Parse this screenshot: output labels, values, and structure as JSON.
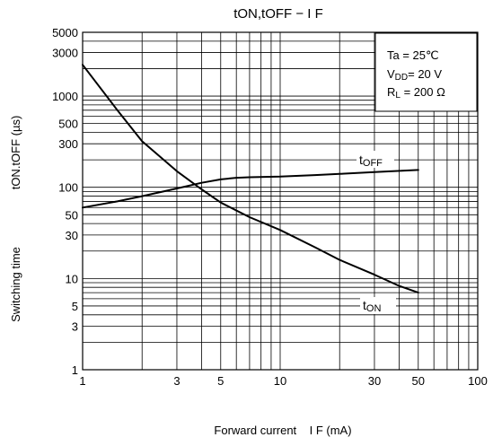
{
  "chart_data": {
    "type": "line",
    "title": "tON,tOFF − I F",
    "xlabel": "Forward current    I F (mA)",
    "ylabel_left": "Switching time",
    "ylabel_right": "tON.tOFF (µs)",
    "x_scale": "log",
    "y_scale": "log",
    "xlim": [
      1,
      100
    ],
    "ylim": [
      1,
      5000
    ],
    "x_ticks": [
      {
        "v": 1,
        "label": "1"
      },
      {
        "v": 3,
        "label": "3"
      },
      {
        "v": 5,
        "label": "5"
      },
      {
        "v": 10,
        "label": "10"
      },
      {
        "v": 30,
        "label": "30"
      },
      {
        "v": 50,
        "label": "50"
      },
      {
        "v": 100,
        "label": "100"
      }
    ],
    "y_ticks": [
      {
        "v": 1,
        "label": "1"
      },
      {
        "v": 3,
        "label": "3"
      },
      {
        "v": 5,
        "label": "5"
      },
      {
        "v": 10,
        "label": "10"
      },
      {
        "v": 30,
        "label": "30"
      },
      {
        "v": 50,
        "label": "50"
      },
      {
        "v": 100,
        "label": "100"
      },
      {
        "v": 300,
        "label": "300"
      },
      {
        "v": 500,
        "label": "500"
      },
      {
        "v": 1000,
        "label": "1000"
      },
      {
        "v": 3000,
        "label": "3000"
      },
      {
        "v": 5000,
        "label": "5000"
      }
    ],
    "grid": true,
    "series": [
      {
        "name": "tON",
        "x": [
          1,
          1.5,
          2,
          3,
          4,
          5,
          7,
          10,
          15,
          20,
          30,
          40,
          50
        ],
        "y": [
          2200,
          700,
          320,
          150,
          95,
          68,
          47,
          34,
          22,
          16,
          11,
          8.3,
          7
        ]
      },
      {
        "name": "tOFF",
        "x": [
          1,
          1.5,
          2,
          3,
          4,
          5,
          6,
          7,
          10,
          15,
          20,
          30,
          50
        ],
        "y": [
          60,
          70,
          80,
          97,
          112,
          122,
          127,
          129,
          131,
          136,
          140,
          147,
          155
        ]
      }
    ],
    "annotations": [
      {
        "base": "t",
        "sub": "OFF"
      },
      {
        "base": "t",
        "sub": "ON"
      }
    ],
    "conditions": {
      "line1": "Ta = 25℃",
      "line2_base": "V",
      "line2_sub": "DD",
      "line2_rest": "= 20 V",
      "line3_base": "R",
      "line3_sub": "L",
      "line3_rest": " = 200 Ω"
    },
    "colors": {
      "grid": "#000000",
      "curve": "#000000",
      "background": "#ffffff"
    }
  }
}
